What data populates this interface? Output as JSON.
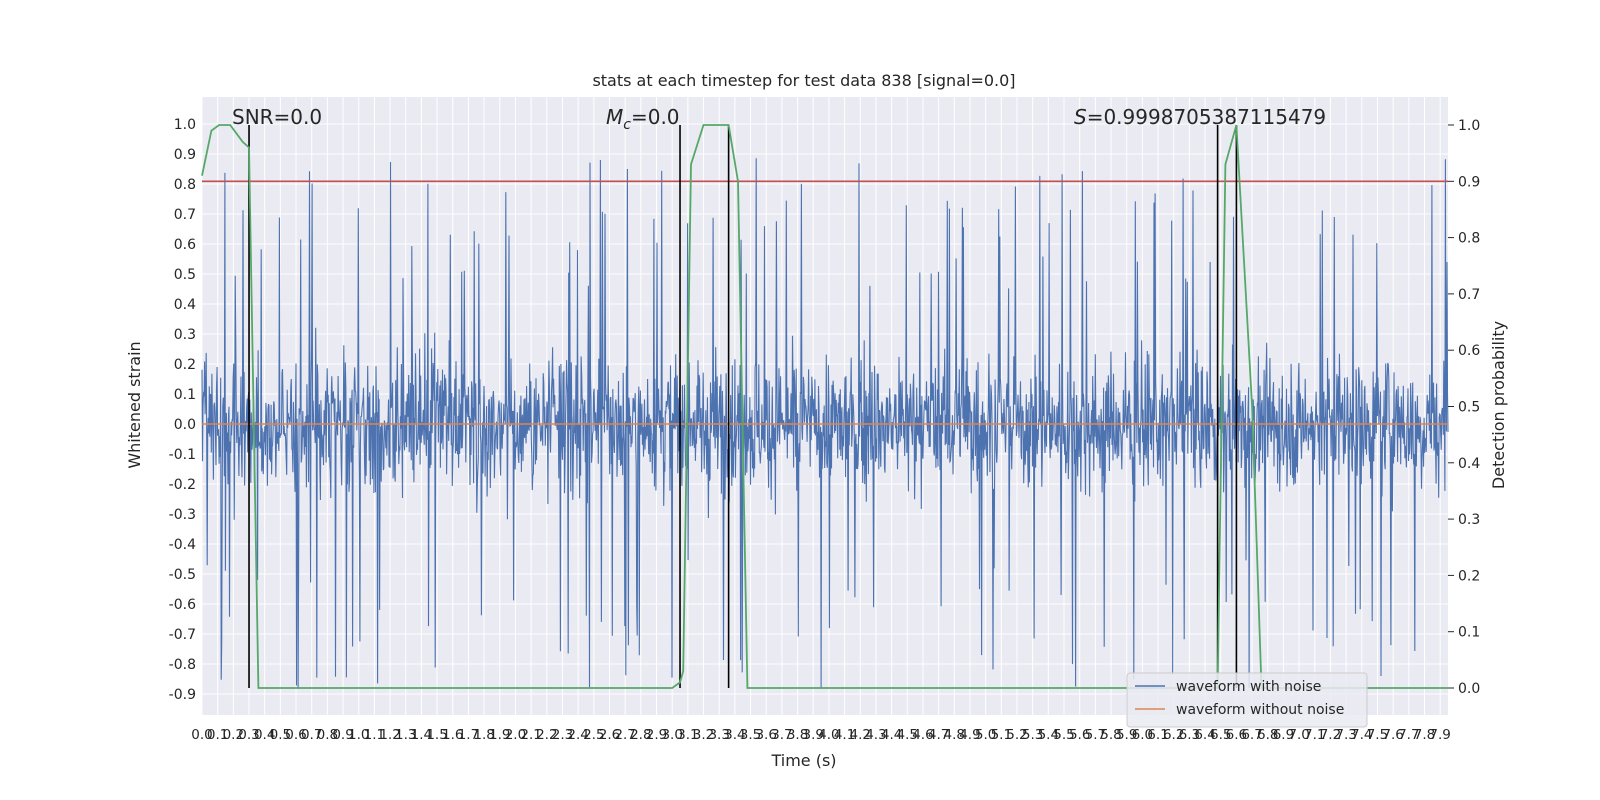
{
  "chart_data": {
    "type": "line",
    "title": "stats at each timestep for test data 838 [signal=0.0]",
    "xlabel": "Time (s)",
    "ylabel_left": "Whitened strain",
    "ylabel_right": "Detection probability",
    "xlim": [
      0.0,
      7.95
    ],
    "ylim_left": [
      -0.97,
      1.09
    ],
    "ylim_right": [
      0.0,
      1.0
    ],
    "grid": true,
    "legend_placement": "lower-right",
    "x_ticks": [
      "0.0",
      "0.1",
      "0.2",
      "0.3",
      "0.4",
      "0.5",
      "0.6",
      "0.7",
      "0.8",
      "0.9",
      "1.0",
      "1.1",
      "1.2",
      "1.3",
      "1.4",
      "1.5",
      "1.6",
      "1.7",
      "1.8",
      "1.9",
      "2.0",
      "2.1",
      "2.2",
      "2.3",
      "2.4",
      "2.5",
      "2.6",
      "2.7",
      "2.8",
      "2.9",
      "3.0",
      "3.1",
      "3.2",
      "3.3",
      "3.4",
      "3.5",
      "3.6",
      "3.7",
      "3.8",
      "3.9",
      "4.0",
      "4.1",
      "4.2",
      "4.3",
      "4.4",
      "4.5",
      "4.6",
      "4.7",
      "4.8",
      "4.9",
      "5.0",
      "5.1",
      "5.2",
      "5.3",
      "5.4",
      "5.5",
      "5.6",
      "5.7",
      "5.8",
      "5.9",
      "6.0",
      "6.1",
      "6.2",
      "6.3",
      "6.4",
      "6.5",
      "6.6",
      "6.7",
      "6.8",
      "6.9",
      "7.0",
      "7.1",
      "7.2",
      "7.3",
      "7.4",
      "7.5",
      "7.6",
      "7.7",
      "7.8",
      "7.9"
    ],
    "y_ticks_left": [
      "1.0",
      "0.9",
      "0.8",
      "0.7",
      "0.6",
      "0.5",
      "0.4",
      "0.3",
      "0.2",
      "0.1",
      "0.0",
      "-0.1",
      "-0.2",
      "-0.3",
      "-0.4",
      "-0.5",
      "-0.6",
      "-0.7",
      "-0.8",
      "-0.9"
    ],
    "y_ticks_right": [
      "1.0",
      "0.9",
      "0.8",
      "0.7",
      "0.6",
      "0.5",
      "0.4",
      "0.3",
      "0.2",
      "0.1",
      "0.0"
    ],
    "annotations": {
      "snr": "SNR=0.0",
      "mc": "M",
      "mc_sub": "c",
      "mc_value": "=0.0",
      "s_symbol": "S",
      "s_value": "=0.9998705387115479"
    },
    "threshold": {
      "axis": "right",
      "value": 0.9,
      "color": "#c44e52"
    },
    "vertical_lines": [
      0.3,
      3.05,
      3.36,
      6.48,
      6.6
    ],
    "series": [
      {
        "name": "waveform with noise",
        "axis": "left",
        "color": "#4c72b0",
        "kind": "noise",
        "envelope": {
          "typical_amplitude": 0.3,
          "peak_amplitude": 0.9
        }
      },
      {
        "name": "waveform without noise",
        "axis": "left",
        "color": "#dd8452",
        "x": [
          0.0,
          7.95
        ],
        "values": [
          0.0,
          0.0
        ]
      },
      {
        "name": "",
        "axis": "right",
        "color": "#55a868",
        "x": [
          0.0,
          0.06,
          0.11,
          0.18,
          0.26,
          0.3,
          0.36,
          0.43,
          0.8,
          0.9,
          1.2,
          1.8,
          1.9,
          3.0,
          3.05,
          3.07,
          3.12,
          3.2,
          3.36,
          3.42,
          3.48,
          3.6,
          6.48,
          6.53,
          6.6,
          6.7,
          6.76,
          7.95
        ],
        "values": [
          0.91,
          0.99,
          1.0,
          1.0,
          0.97,
          0.96,
          0.0,
          0.0,
          0.0,
          0.0,
          0.0,
          0.0,
          0.0,
          0.0,
          0.01,
          0.03,
          0.93,
          1.0,
          1.0,
          0.9,
          0.0,
          0.0,
          0.0,
          0.93,
          1.0,
          0.5,
          0.0,
          0.0
        ]
      }
    ]
  }
}
